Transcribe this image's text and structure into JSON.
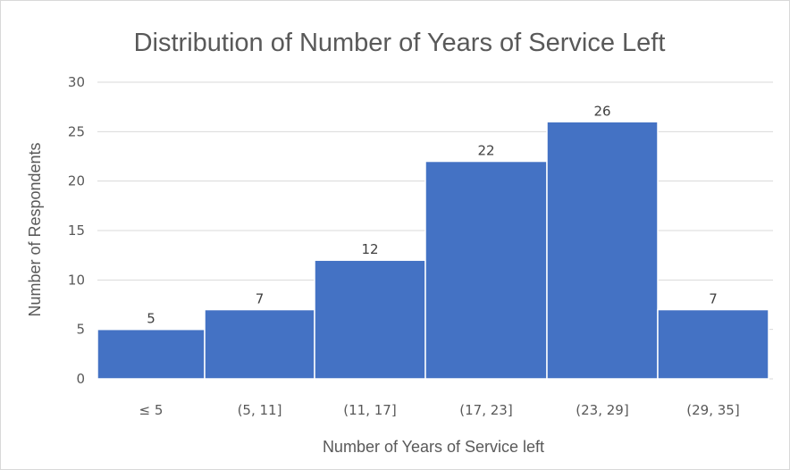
{
  "chart_data": {
    "type": "bar",
    "title": "Distribution of Number of Years of Service Left",
    "xlabel": "Number of Years of Service left",
    "ylabel": "Number of Respondents",
    "categories": [
      "≤ 5",
      "(5, 11]",
      "(11, 17]",
      "(17, 23]",
      "(23, 29]",
      "(29, 35]"
    ],
    "values": [
      5,
      7,
      12,
      22,
      26,
      7
    ],
    "ylim": [
      0,
      30
    ],
    "yticks": [
      0,
      5,
      10,
      15,
      20,
      25,
      30
    ],
    "grid": true,
    "legend": "none",
    "colors": {
      "bar": "#4472c4"
    }
  }
}
